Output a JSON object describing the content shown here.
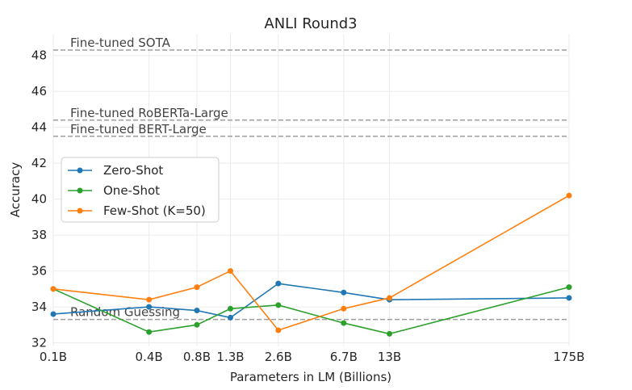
{
  "chart_data": {
    "type": "line",
    "title": "ANLI Round3",
    "xlabel": "Parameters in LM (Billions)",
    "ylabel": "Accuracy",
    "x_scale": "log",
    "x": [
      0.1,
      0.4,
      0.8,
      1.3,
      2.6,
      6.7,
      13,
      175
    ],
    "x_tick_labels": [
      "0.1B",
      "0.4B",
      "0.8B",
      "1.3B",
      "2.6B",
      "6.7B",
      "13B",
      "175B"
    ],
    "ylim": [
      31.8,
      49.2
    ],
    "yticks": [
      32,
      34,
      36,
      38,
      40,
      42,
      44,
      46,
      48
    ],
    "grid": true,
    "legend_position": "center-left",
    "series": [
      {
        "name": "Zero-Shot",
        "color": "#1f77b4",
        "values": [
          33.6,
          34.0,
          33.8,
          33.4,
          35.3,
          34.8,
          34.4,
          34.5
        ]
      },
      {
        "name": "One-Shot",
        "color": "#2ca02c",
        "values": [
          35.0,
          32.6,
          33.0,
          33.9,
          34.1,
          33.1,
          32.5,
          35.1
        ]
      },
      {
        "name": "Few-Shot (K=50)",
        "color": "#ff7f0e",
        "values": [
          35.0,
          34.4,
          35.1,
          36.0,
          32.7,
          33.9,
          34.5,
          40.2
        ]
      }
    ],
    "reference_lines": [
      {
        "label": "Fine-tuned SOTA",
        "value": 48.3
      },
      {
        "label": "Fine-tuned RoBERTa-Large",
        "value": 44.4
      },
      {
        "label": "Fine-tuned BERT-Large",
        "value": 43.5
      },
      {
        "label": "Random Guessing",
        "value": 33.3
      }
    ]
  }
}
